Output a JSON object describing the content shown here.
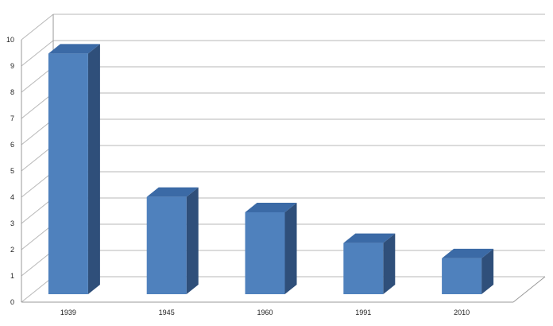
{
  "chart_data": {
    "type": "bar",
    "title": "",
    "xlabel": "",
    "ylabel": "",
    "categories": [
      "1939",
      "1945",
      "1960",
      "1991",
      "2010"
    ],
    "values": [
      9.4,
      3.8,
      3.2,
      2.0,
      1.4
    ],
    "ylim": [
      0,
      10
    ],
    "yticks": [
      "0",
      "1",
      "2",
      "3",
      "4",
      "5",
      "6",
      "7",
      "8",
      "9",
      "10"
    ],
    "grid": true,
    "three_d": true,
    "colors": {
      "bar_front": "#4f81bd",
      "bar_side": "#2f4f7a",
      "bar_top": "#3b6aa6"
    }
  }
}
